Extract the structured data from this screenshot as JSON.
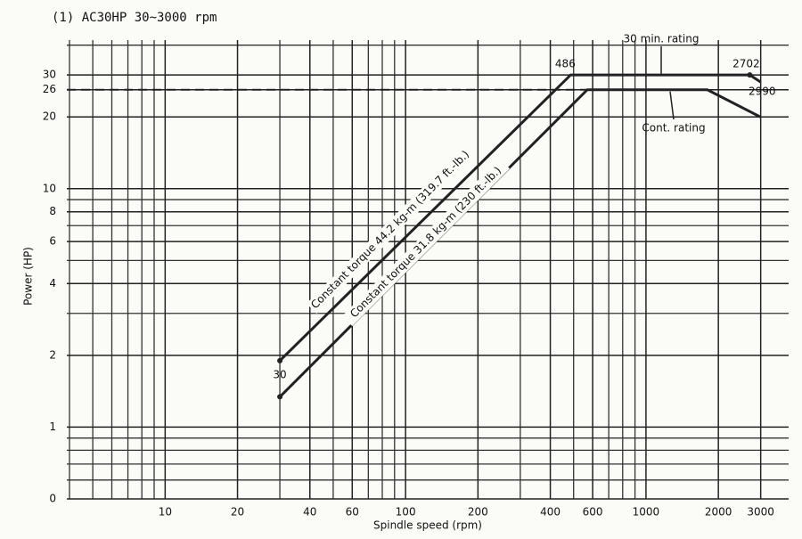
{
  "chart_data": {
    "type": "line",
    "title": "(1)  AC30HP    30~3000 rpm",
    "x_label": "Spindle speed (rpm)",
    "y_label": "Power (HP)",
    "log_x": true,
    "log_y": true,
    "grid": true,
    "xlim": [
      3.9,
      3920
    ],
    "ylim": [
      0.5,
      42
    ],
    "xticks": [
      10,
      20,
      40,
      60,
      100,
      200,
      400,
      600,
      1000,
      2000,
      3000
    ],
    "yticks": [
      {
        "value": 0.5,
        "label": "0"
      },
      1,
      2,
      4,
      6,
      8,
      10,
      20,
      26,
      30
    ],
    "series": [
      {
        "name": "30 min. rating",
        "color": "#222222",
        "x": [
          30,
          486,
          2702,
          3000
        ],
        "values": [
          1.9,
          30,
          30,
          28
        ]
      },
      {
        "name": "Cont. rating",
        "color": "#222222",
        "x": [
          30,
          570,
          1800,
          2990
        ],
        "values": [
          1.34,
          26,
          26,
          20
        ]
      }
    ],
    "annotations": [
      "Constant torque 44.2 kg-m (319.7 ft.-lb.)",
      "Constant torque 31.8 kg-m (230 ft.-lb.)"
    ]
  }
}
